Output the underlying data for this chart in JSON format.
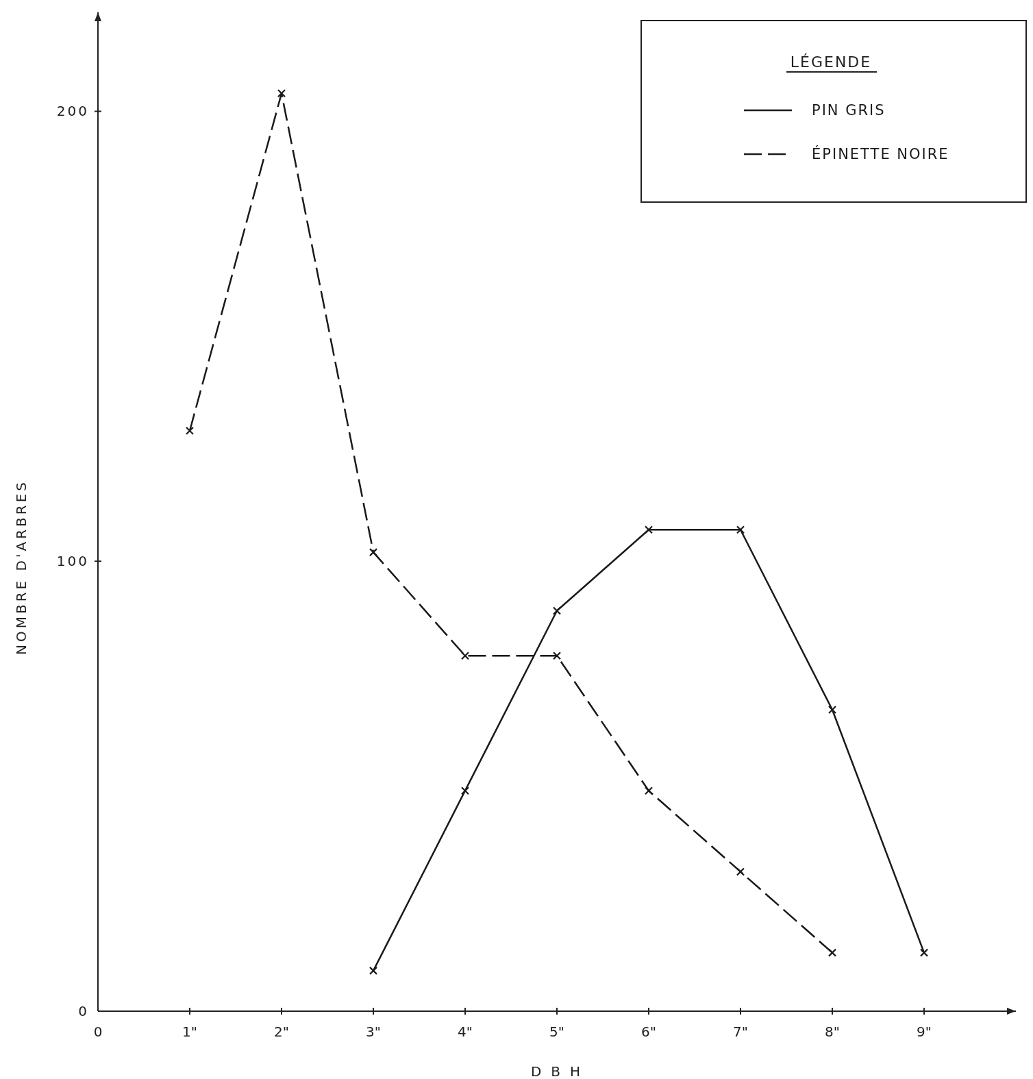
{
  "chart_data": {
    "type": "line",
    "xlabel": "DBH",
    "ylabel": "NOMBRE D'ARBRES",
    "legend_title": "LÉGENDE",
    "legend": "top right",
    "grid": false,
    "marker": "cross",
    "xlim": [
      0,
      10
    ],
    "xticks": [
      0,
      {
        "value": 1,
        "label": "1\""
      },
      {
        "value": 2,
        "label": "2\""
      },
      {
        "value": 3,
        "label": "3\""
      },
      {
        "value": 4,
        "label": "4\""
      },
      {
        "value": 5,
        "label": "5\""
      },
      {
        "value": 6,
        "label": "6\""
      },
      {
        "value": 7,
        "label": "7\""
      },
      {
        "value": 8,
        "label": "8\""
      },
      {
        "value": 9,
        "label": "9\""
      }
    ],
    "ylim": [
      0,
      222
    ],
    "yticks": [
      0,
      100,
      200
    ],
    "series": [
      {
        "name": "PIN GRIS",
        "color": "#1a1a1a",
        "line_style": "solid",
        "x": [
          3,
          4,
          5,
          6,
          7,
          8,
          9
        ],
        "values": [
          9,
          49,
          89,
          107,
          107,
          67,
          13
        ]
      },
      {
        "name": "ÉPINETTE NOIRE",
        "color": "#1a1a1a",
        "line_style": "dashed",
        "x": [
          1,
          2,
          3,
          4,
          5,
          6,
          7,
          8
        ],
        "values": [
          129,
          204,
          102,
          79,
          79,
          49,
          31,
          13
        ]
      }
    ]
  }
}
